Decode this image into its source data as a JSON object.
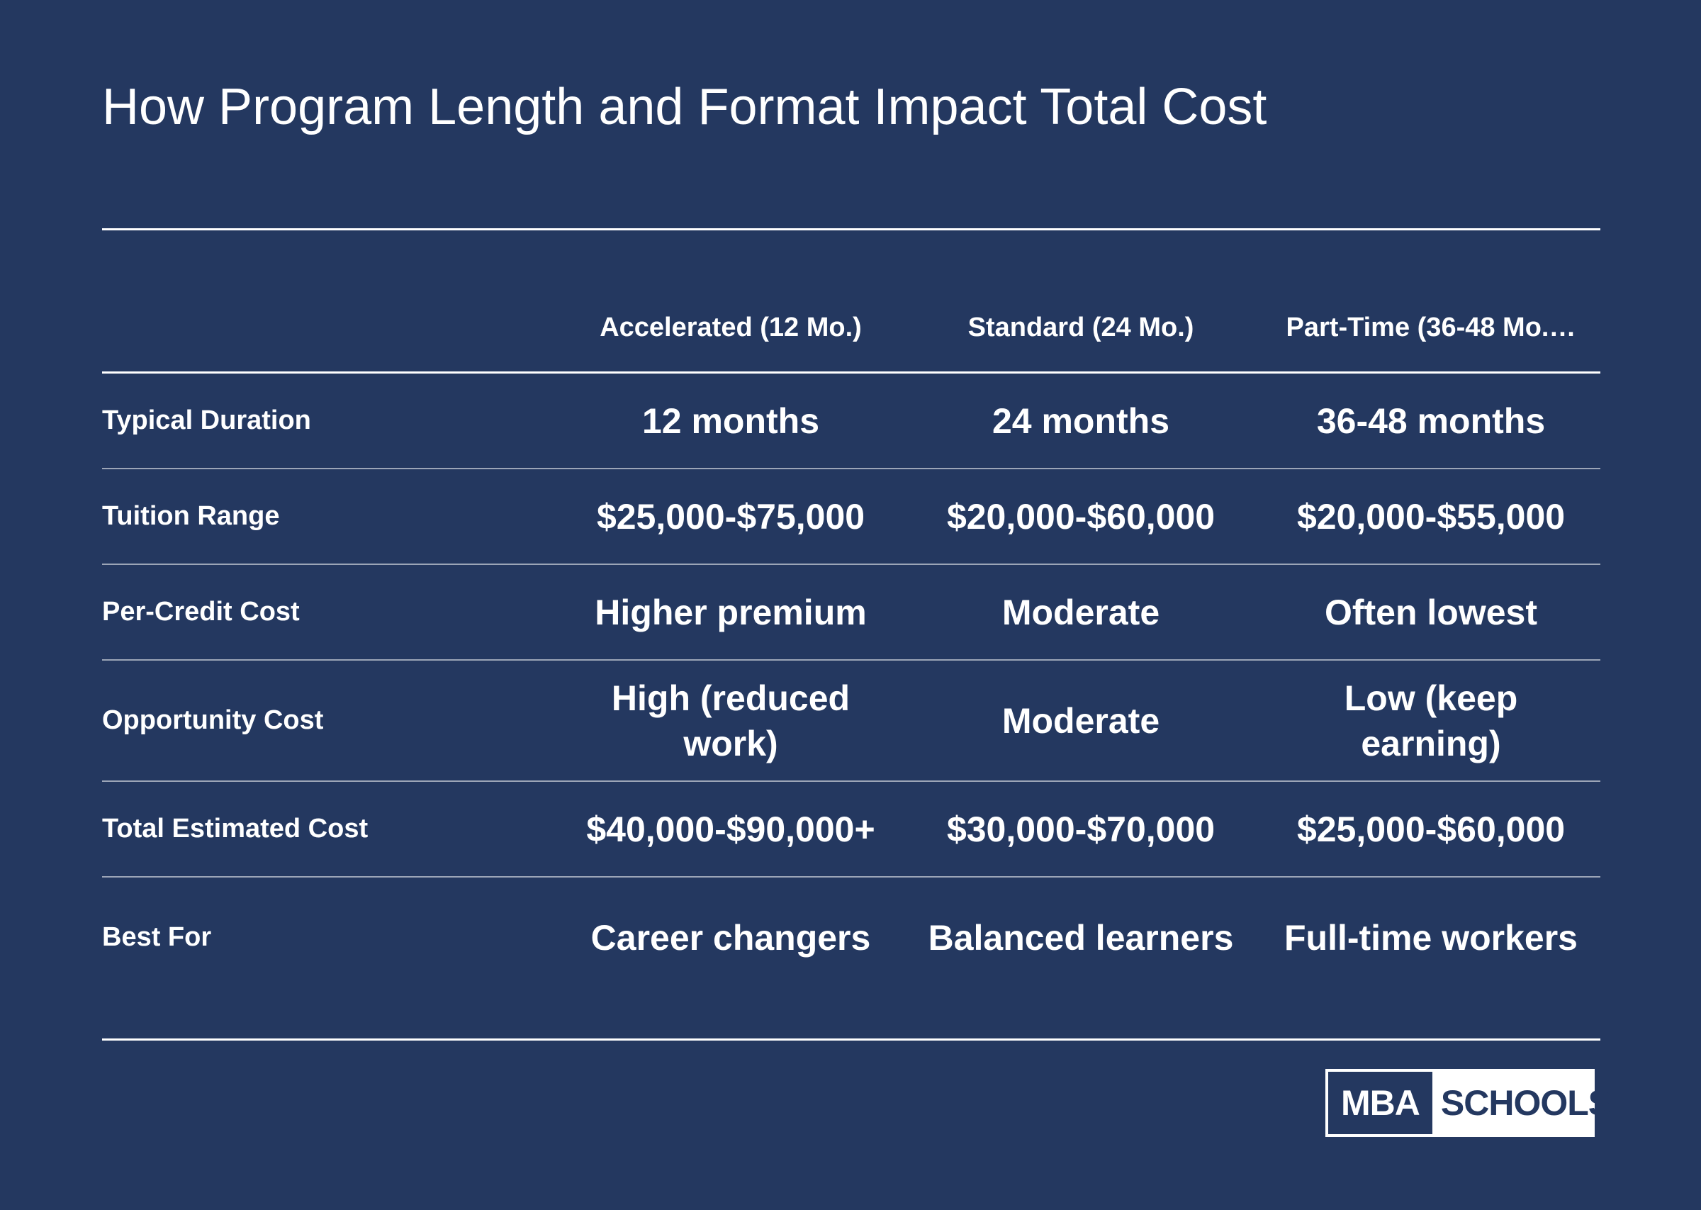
{
  "title": "How Program Length and Format Impact Total Cost",
  "columns": [
    "Accelerated (12 Mo.)",
    "Standard (24 Mo.)",
    "Part-Time (36-48 Mo.…"
  ],
  "rows": [
    {
      "label": "Typical Duration",
      "values": [
        "12 months",
        "24 months",
        "36-48 months"
      ]
    },
    {
      "label": "Tuition Range",
      "values": [
        "$25,000-$75,000",
        "$20,000-$60,000",
        "$20,000-$55,000"
      ]
    },
    {
      "label": "Per-Credit Cost",
      "values": [
        "Higher premium",
        "Moderate",
        "Often lowest"
      ]
    },
    {
      "label": "Opportunity Cost",
      "values": [
        "High (reduced work)",
        "Moderate",
        "Low (keep earning)"
      ]
    },
    {
      "label": "Total Estimated Cost",
      "values": [
        "$40,000-$90,000+",
        "$30,000-$70,000",
        "$25,000-$60,000"
      ]
    },
    {
      "label": "Best For",
      "values": [
        "Career changers",
        "Balanced learners",
        "Full-time workers"
      ]
    }
  ],
  "logo": {
    "left": "MBA",
    "right": "SCHOOLS"
  },
  "colors": {
    "background": "#243860",
    "text": "#ffffff"
  }
}
